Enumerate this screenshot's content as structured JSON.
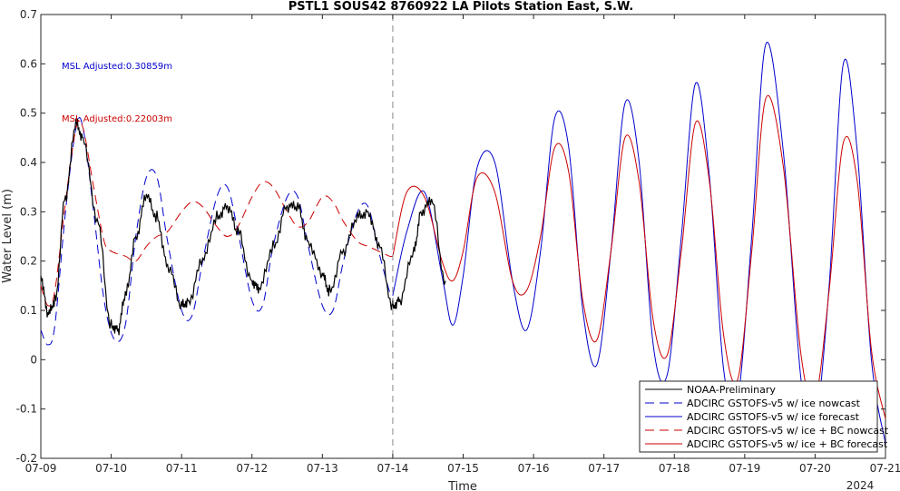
{
  "chart_data": {
    "type": "line",
    "title": "PSTL1 SOUS42 8760922 LA Pilots Station East, S.W.",
    "xlabel": "Time",
    "ylabel": "Water Level (m)",
    "x_tick_labels": [
      "07-09",
      "07-10",
      "07-11",
      "07-12",
      "07-13",
      "07-14",
      "07-15",
      "07-16",
      "07-17",
      "07-18",
      "07-19",
      "07-20",
      "07-21"
    ],
    "x_year_label": "2024",
    "xlim_days": [
      0,
      12
    ],
    "ylim": [
      -0.2,
      0.7
    ],
    "y_ticks": [
      -0.2,
      -0.1,
      0,
      0.1,
      0.2,
      0.3,
      0.4,
      0.5,
      0.6,
      0.7
    ],
    "y_tick_labels": [
      "-0.2",
      "-0.1",
      "0",
      "0.1",
      "0.2",
      "0.3",
      "0.4",
      "0.5",
      "0.6",
      "0.7"
    ],
    "nowcast_forecast_boundary_day": 5,
    "grid": false,
    "legend_position": "bottom-right",
    "annotations": [
      {
        "text": "MSL Adjusted:0.30859m",
        "color": "#0000cc"
      },
      {
        "text": "MSL Adjusted:0.22003m",
        "color": "#cc0000"
      }
    ],
    "series": [
      {
        "name": "NOAA-Preliminary",
        "color": "#000000",
        "style": "solid",
        "x": [
          0,
          0.1,
          0.2,
          0.35,
          0.5,
          0.6,
          0.8,
          1.0,
          1.1,
          1.2,
          1.35,
          1.5,
          1.65,
          1.8,
          2.0,
          2.1,
          2.3,
          2.5,
          2.65,
          2.8,
          3.0,
          3.1,
          3.3,
          3.5,
          3.65,
          3.8,
          4.0,
          4.1,
          4.3,
          4.5,
          4.65,
          4.8,
          5.0,
          5.1,
          5.3,
          5.4,
          5.55,
          5.75
        ],
        "y": [
          0.17,
          0.09,
          0.12,
          0.33,
          0.48,
          0.45,
          0.28,
          0.07,
          0.06,
          0.13,
          0.25,
          0.33,
          0.29,
          0.19,
          0.11,
          0.12,
          0.2,
          0.29,
          0.31,
          0.26,
          0.16,
          0.14,
          0.23,
          0.31,
          0.31,
          0.24,
          0.17,
          0.14,
          0.22,
          0.29,
          0.3,
          0.23,
          0.11,
          0.12,
          0.22,
          0.3,
          0.32,
          0.16
        ]
      },
      {
        "name": "ADCIRC GSTOFS-v5 w/ ice nowcast",
        "color": "#0000cc",
        "style": "dashed",
        "x": [
          0,
          0.1,
          0.2,
          0.35,
          0.5,
          0.6,
          0.75,
          0.9,
          1.05,
          1.2,
          1.35,
          1.5,
          1.65,
          1.8,
          2.0,
          2.15,
          2.3,
          2.5,
          2.65,
          2.8,
          3.0,
          3.15,
          3.3,
          3.5,
          3.65,
          3.8,
          4.0,
          4.15,
          4.3,
          4.5,
          4.65,
          4.8,
          4.95,
          5.0
        ],
        "y": [
          0.06,
          0.03,
          0.07,
          0.3,
          0.47,
          0.47,
          0.3,
          0.12,
          0.04,
          0.07,
          0.25,
          0.37,
          0.37,
          0.24,
          0.1,
          0.09,
          0.2,
          0.33,
          0.35,
          0.26,
          0.12,
          0.11,
          0.23,
          0.33,
          0.33,
          0.23,
          0.11,
          0.1,
          0.2,
          0.3,
          0.31,
          0.22,
          0.14,
          0.13
        ]
      },
      {
        "name": "ADCIRC GSTOFS-v5 w/ ice forecast",
        "color": "#0000cc",
        "style": "solid",
        "x": [
          5.0,
          5.2,
          5.45,
          5.7,
          5.85,
          6.0,
          6.2,
          6.45,
          6.7,
          6.9,
          7.1,
          7.3,
          7.5,
          7.7,
          7.9,
          8.1,
          8.3,
          8.5,
          8.7,
          8.9,
          9.1,
          9.3,
          9.5,
          9.7,
          9.9,
          10.1,
          10.3,
          10.55,
          10.8,
          11.0,
          11.2,
          11.4,
          11.6,
          11.8,
          12.0
        ],
        "y": [
          0.13,
          0.26,
          0.34,
          0.17,
          0.07,
          0.17,
          0.39,
          0.4,
          0.16,
          0.06,
          0.22,
          0.49,
          0.43,
          0.1,
          -0.01,
          0.22,
          0.52,
          0.4,
          0.03,
          -0.03,
          0.25,
          0.56,
          0.37,
          -0.02,
          -0.08,
          0.25,
          0.64,
          0.42,
          -0.04,
          -0.13,
          0.15,
          0.6,
          0.42,
          0.0,
          -0.17
        ]
      },
      {
        "name": "ADCIRC GSTOFS-v5 w/ ice + BC nowcast",
        "color": "#cc0000",
        "style": "dashed",
        "x": [
          0,
          0.1,
          0.2,
          0.35,
          0.5,
          0.6,
          0.75,
          0.9,
          1.0,
          1.2,
          1.35,
          1.5,
          1.65,
          1.8,
          2.0,
          2.15,
          2.3,
          2.5,
          2.65,
          2.8,
          3.0,
          3.15,
          3.3,
          3.5,
          3.65,
          3.8,
          4.0,
          4.15,
          4.3,
          4.5,
          4.65,
          4.8,
          4.95,
          5.0
        ],
        "y": [
          0.15,
          0.11,
          0.14,
          0.32,
          0.47,
          0.47,
          0.35,
          0.24,
          0.22,
          0.21,
          0.2,
          0.23,
          0.25,
          0.26,
          0.3,
          0.32,
          0.31,
          0.27,
          0.25,
          0.27,
          0.33,
          0.36,
          0.35,
          0.3,
          0.27,
          0.28,
          0.33,
          0.32,
          0.28,
          0.24,
          0.23,
          0.22,
          0.21,
          0.21
        ]
      },
      {
        "name": "ADCIRC GSTOFS-v5 w/ ice + BC forecast",
        "color": "#cc0000",
        "style": "solid",
        "x": [
          5.0,
          5.2,
          5.45,
          5.7,
          5.85,
          6.0,
          6.2,
          6.45,
          6.7,
          6.9,
          7.1,
          7.3,
          7.5,
          7.7,
          7.9,
          8.1,
          8.3,
          8.5,
          8.7,
          8.9,
          9.1,
          9.3,
          9.5,
          9.7,
          9.9,
          10.1,
          10.3,
          10.55,
          10.8,
          11.0,
          11.2,
          11.4,
          11.6,
          11.8,
          12.0
        ],
        "y": [
          0.21,
          0.34,
          0.33,
          0.2,
          0.16,
          0.22,
          0.37,
          0.34,
          0.16,
          0.14,
          0.25,
          0.43,
          0.38,
          0.12,
          0.04,
          0.22,
          0.45,
          0.36,
          0.08,
          0.01,
          0.22,
          0.48,
          0.36,
          0.05,
          -0.04,
          0.22,
          0.53,
          0.39,
          0.01,
          -0.08,
          0.14,
          0.44,
          0.36,
          0.02,
          -0.12
        ]
      }
    ]
  }
}
